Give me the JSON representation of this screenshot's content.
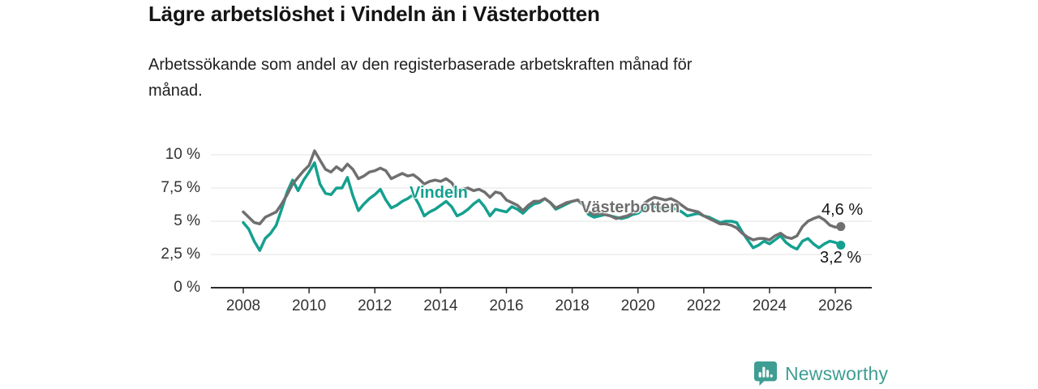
{
  "header": {
    "title": "Lägre arbetslöshet i Vindeln än i Västerbotten",
    "subtitle_lines": [
      "Arbetssökande som andel av den registerbaserade arbetskraften månad för",
      "månad."
    ]
  },
  "chart_data": {
    "type": "line",
    "title": "Lägre arbetslöshet i Vindeln än i Västerbotten",
    "xlabel": "",
    "ylabel": "Arbetssökande som andel av den registerbaserade arbetskraften",
    "unit": "%",
    "grid": true,
    "legend_position": "inline-labels",
    "x_start": 2008.0,
    "x_step_years": 0.16667,
    "xlim": [
      2007.0,
      2027.1
    ],
    "ylim": [
      0,
      10.5
    ],
    "x_ticks": [
      2008,
      2010,
      2012,
      2014,
      2016,
      2018,
      2020,
      2022,
      2024,
      2026
    ],
    "y_ticks": [
      {
        "value": 0,
        "label": "0 %"
      },
      {
        "value": 2.5,
        "label": "2,5 %"
      },
      {
        "value": 5,
        "label": "5 %"
      },
      {
        "value": 7.5,
        "label": "7,5 %"
      },
      {
        "value": 10,
        "label": "10 %"
      }
    ],
    "series": [
      {
        "name": "Vindeln",
        "color": "#14a08f",
        "end_label": "3,2 %",
        "end_value": 3.2,
        "values": [
          4.9,
          4.4,
          3.5,
          2.8,
          3.7,
          4.1,
          4.7,
          5.9,
          7.2,
          8.1,
          7.3,
          8.1,
          8.7,
          9.4,
          7.8,
          7.1,
          7.0,
          7.5,
          7.5,
          8.3,
          6.9,
          5.8,
          6.3,
          6.7,
          7.0,
          7.4,
          6.6,
          6.0,
          6.2,
          6.5,
          6.7,
          7.0,
          6.3,
          5.4,
          5.7,
          5.9,
          6.2,
          6.5,
          6.1,
          5.4,
          5.6,
          5.9,
          6.3,
          6.6,
          6.1,
          5.4,
          5.9,
          5.8,
          5.7,
          6.1,
          5.9,
          5.6,
          6.0,
          6.3,
          6.4,
          6.7,
          6.4,
          5.9,
          6.1,
          6.3,
          6.5,
          6.6,
          6.2,
          5.5,
          5.3,
          5.4,
          5.5,
          5.4,
          5.3,
          5.2,
          5.3,
          5.5,
          5.6,
          5.9,
          6.2,
          6.1,
          6.0,
          5.9,
          6.0,
          5.9,
          5.7,
          5.4,
          5.5,
          5.6,
          5.4,
          5.3,
          5.1,
          4.9,
          5.0,
          5.0,
          4.9,
          4.2,
          3.6,
          3.0,
          3.2,
          3.5,
          3.3,
          3.6,
          3.9,
          3.4,
          3.1,
          2.9,
          3.5,
          3.7,
          3.3,
          3.0,
          3.3,
          3.5,
          3.4,
          3.2
        ]
      },
      {
        "name": "Västerbotten",
        "color": "#6f6f6f",
        "end_label": "4,6 %",
        "end_value": 4.6,
        "values": [
          5.7,
          5.3,
          4.9,
          4.8,
          5.3,
          5.5,
          5.7,
          6.3,
          7.0,
          7.8,
          8.3,
          8.8,
          9.2,
          10.3,
          9.6,
          8.9,
          8.7,
          9.1,
          8.8,
          9.3,
          8.9,
          8.2,
          8.4,
          8.7,
          8.8,
          9.0,
          8.8,
          8.2,
          8.4,
          8.6,
          8.4,
          8.5,
          8.2,
          7.8,
          8.0,
          8.1,
          8.0,
          8.2,
          7.9,
          7.3,
          7.4,
          7.5,
          7.3,
          7.4,
          7.2,
          6.8,
          7.2,
          7.1,
          6.6,
          6.4,
          6.2,
          5.8,
          6.2,
          6.5,
          6.5,
          6.7,
          6.4,
          6.0,
          6.2,
          6.4,
          6.5,
          6.6,
          6.3,
          5.7,
          5.5,
          5.6,
          5.5,
          5.4,
          5.2,
          5.3,
          5.4,
          5.6,
          5.8,
          6.3,
          6.6,
          6.8,
          6.7,
          6.6,
          6.7,
          6.5,
          6.2,
          5.9,
          5.8,
          5.7,
          5.4,
          5.2,
          5.0,
          4.8,
          4.8,
          4.7,
          4.5,
          4.1,
          3.8,
          3.6,
          3.7,
          3.7,
          3.6,
          3.9,
          4.1,
          3.8,
          3.7,
          3.9,
          4.6,
          5.0,
          5.2,
          5.35,
          5.1,
          4.7,
          4.55,
          4.6
        ]
      }
    ],
    "style": {
      "grid_color": "#e3e3e3",
      "axis_color": "#2b2b2b",
      "line_width": 3.5,
      "end_dot_radius": 5.5
    }
  },
  "branding": {
    "wordmark": "Newsworthy",
    "color": "#3e9e93"
  }
}
